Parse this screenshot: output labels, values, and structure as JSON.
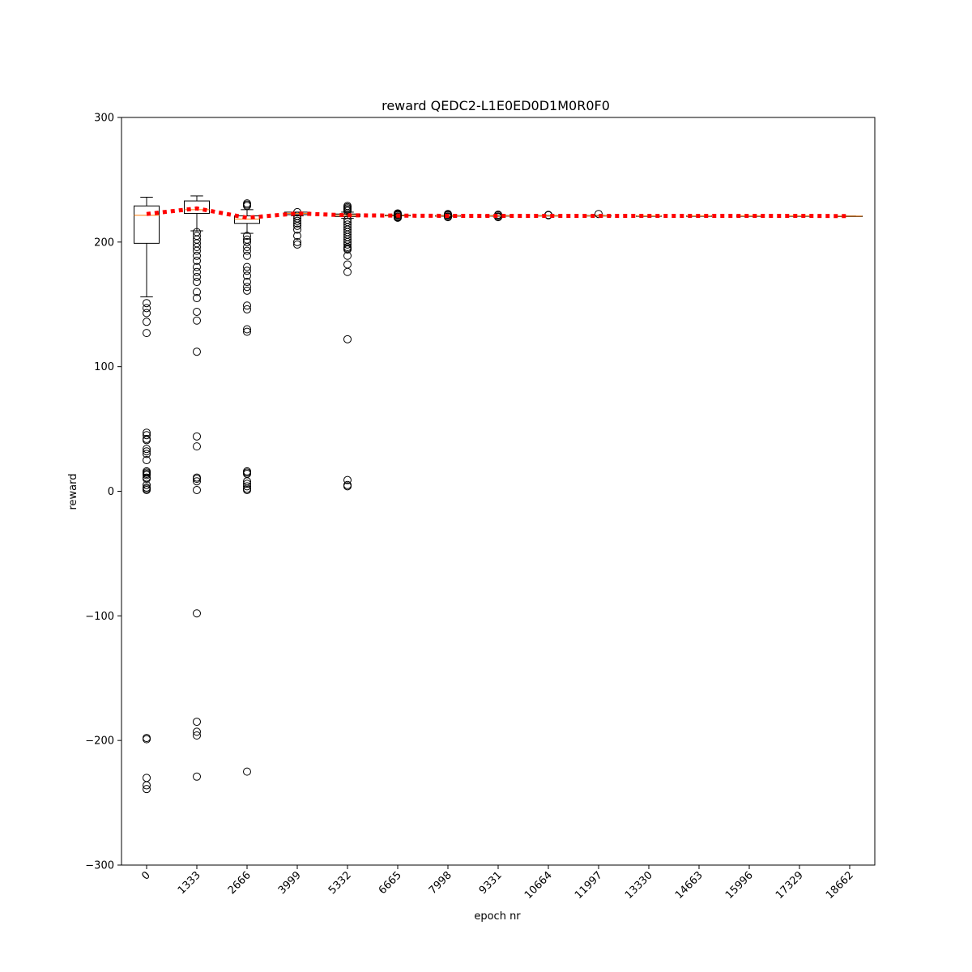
{
  "chart_data": {
    "type": "box",
    "title": "reward QEDC2-L1E0ED0D1M0R0F0",
    "xlabel": "epoch nr",
    "ylabel": "reward",
    "ylim": [
      -300,
      300
    ],
    "yticks": [
      -300,
      -200,
      -100,
      0,
      100,
      200,
      300
    ],
    "categories": [
      "0",
      "1333",
      "2666",
      "3999",
      "5332",
      "6665",
      "7998",
      "9331",
      "10664",
      "11997",
      "13330",
      "14663",
      "15996",
      "17329",
      "18662"
    ],
    "boxes": [
      {
        "q1": 199,
        "median": 221.5,
        "q3": 229,
        "whislo": 156,
        "whishi": 236,
        "fliers": [
          151,
          147,
          143,
          136,
          127,
          47,
          45,
          42,
          41,
          34,
          32,
          30,
          25,
          16,
          15,
          14,
          13,
          11,
          10,
          5,
          3,
          2,
          1,
          -198,
          -199,
          -230,
          -236,
          -239
        ]
      },
      {
        "q1": 223,
        "median": 226,
        "q3": 233,
        "whislo": 209,
        "whishi": 237,
        "fliers": [
          208,
          205,
          202,
          199,
          196,
          193,
          189,
          185,
          180,
          176,
          172,
          168,
          160,
          155,
          144,
          137,
          112,
          44,
          36,
          11,
          10,
          8,
          1,
          -98,
          -185,
          -193,
          -196,
          -229
        ]
      },
      {
        "q1": 215,
        "median": 218.5,
        "q3": 221,
        "whislo": 207,
        "whishi": 226,
        "fliers": [
          231,
          230,
          229,
          205,
          202,
          200,
          196,
          193,
          189,
          180,
          177,
          173,
          168,
          164,
          161,
          149,
          146,
          130,
          128,
          16,
          15,
          14,
          8,
          6,
          4,
          2,
          1,
          -225
        ]
      },
      {
        "q1": 222,
        "median": 223,
        "q3": 224,
        "whislo": 221,
        "whishi": 224,
        "fliers": [
          224,
          221,
          219,
          217,
          215,
          213,
          210,
          205,
          200,
          198
        ]
      },
      {
        "q1": 220.5,
        "median": 221.5,
        "q3": 222.5,
        "whislo": 219,
        "whishi": 224,
        "fliers": [
          229,
          228,
          227,
          226,
          225,
          218,
          216,
          214,
          212,
          210,
          208,
          206,
          204,
          202,
          200,
          198,
          196,
          195,
          194,
          189,
          182,
          176,
          122,
          9,
          5,
          4
        ]
      },
      {
        "q1": 221,
        "median": 221.2,
        "q3": 221.5,
        "whislo": 221,
        "whishi": 221.5,
        "fliers": [
          223,
          222.5,
          222,
          221.5,
          220.5,
          220,
          219.5
        ]
      },
      {
        "q1": 220.8,
        "median": 221,
        "q3": 221.2,
        "whislo": 220.8,
        "whishi": 221.2,
        "fliers": [
          222.5,
          222,
          221.5,
          220.5,
          220
        ]
      },
      {
        "q1": 220.8,
        "median": 221,
        "q3": 221.2,
        "whislo": 220.8,
        "whishi": 221.2,
        "fliers": [
          222,
          221.5,
          220.5,
          220
        ]
      },
      {
        "q1": 221,
        "median": 221,
        "q3": 221.2,
        "whislo": 221,
        "whishi": 221.2,
        "fliers": [
          221.8,
          221.5
        ]
      },
      {
        "q1": 221,
        "median": 221,
        "q3": 221.2,
        "whislo": 221,
        "whishi": 221.2,
        "fliers": [
          222.5
        ]
      },
      {
        "q1": 221,
        "median": 221,
        "q3": 221,
        "whislo": 221,
        "whishi": 221,
        "fliers": []
      },
      {
        "q1": 221,
        "median": 221,
        "q3": 221,
        "whislo": 221,
        "whishi": 221,
        "fliers": []
      },
      {
        "q1": 221,
        "median": 221,
        "q3": 221,
        "whislo": 221,
        "whishi": 221,
        "fliers": []
      },
      {
        "q1": 221,
        "median": 221,
        "q3": 221,
        "whislo": 221,
        "whishi": 221,
        "fliers": []
      },
      {
        "q1": 220.8,
        "median": 220.8,
        "q3": 220.8,
        "whislo": 220.8,
        "whishi": 220.8,
        "fliers": []
      }
    ],
    "mean_line": [
      222.5,
      227,
      219.5,
      223,
      221.5,
      221.2,
      221.0,
      221.0,
      221.0,
      221.0,
      221.0,
      221.0,
      221.0,
      221.0,
      220.8
    ],
    "colors": {
      "box": "#000000",
      "median": "#ff7f0e",
      "mean_line": "#ff0000"
    }
  }
}
